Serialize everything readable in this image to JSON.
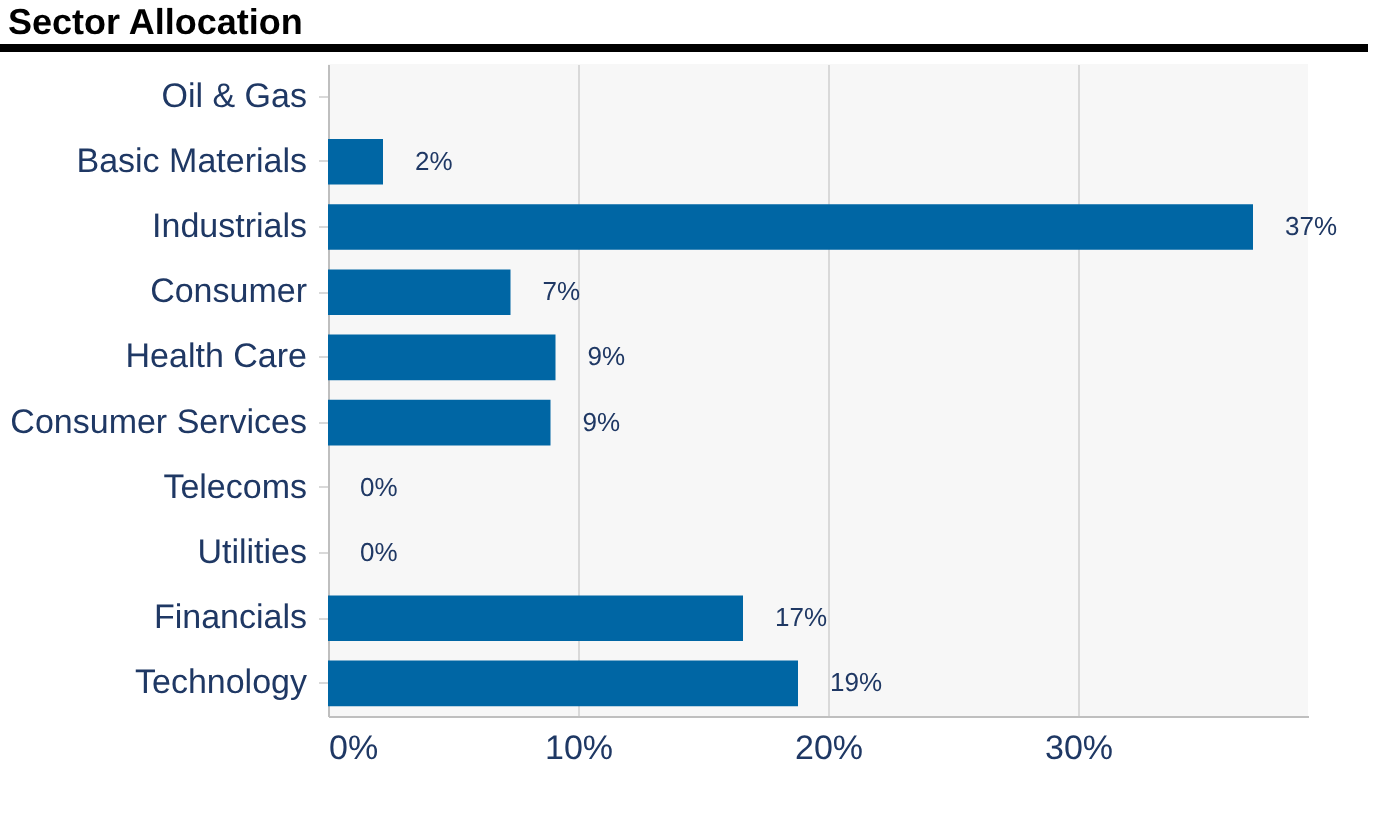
{
  "chart_data": {
    "type": "bar",
    "orientation": "horizontal",
    "title": "Sector Allocation",
    "categories": [
      "Oil & Gas",
      "Basic Materials",
      "Industrials",
      "Consumer",
      "Health Care",
      "Consumer Services",
      "Telecoms",
      "Utilities",
      "Financials",
      "Technology"
    ],
    "values": [
      0,
      2.2,
      37.0,
      7.3,
      9.1,
      8.9,
      0,
      0,
      16.6,
      18.8
    ],
    "value_labels": [
      null,
      "2%",
      "37%",
      "7%",
      "9%",
      "9%",
      "0%",
      "0%",
      "17%",
      "19%"
    ],
    "color": "#0066a4",
    "xlim": [
      0,
      39.2
    ],
    "xticks": [
      {
        "value": 0,
        "label": "0%"
      },
      {
        "value": 10,
        "label": "10%"
      },
      {
        "value": 20,
        "label": "20%"
      },
      {
        "value": 30,
        "label": "30%"
      }
    ],
    "grid": "x"
  }
}
